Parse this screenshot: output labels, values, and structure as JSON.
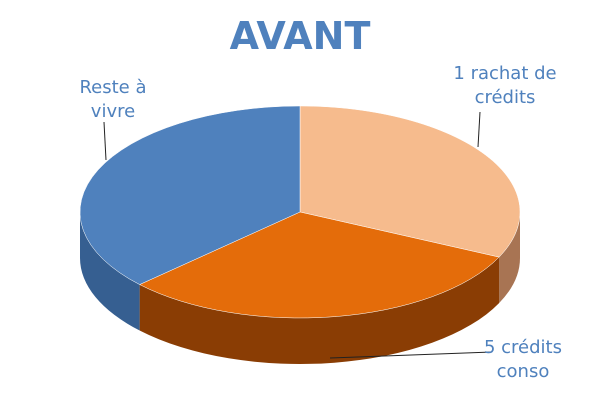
{
  "chart_data": {
    "type": "pie",
    "title": "AVANT",
    "categories": [
      "1 rachat de crédits",
      "5 crédits conso",
      "Reste à vivre"
    ],
    "values": [
      32,
      31,
      37
    ],
    "colors": [
      "#f6bb8d",
      "#e46c0a",
      "#4f81bd"
    ],
    "side_colors": [
      "#a87453",
      "#8a3d04",
      "#365f91"
    ]
  }
}
